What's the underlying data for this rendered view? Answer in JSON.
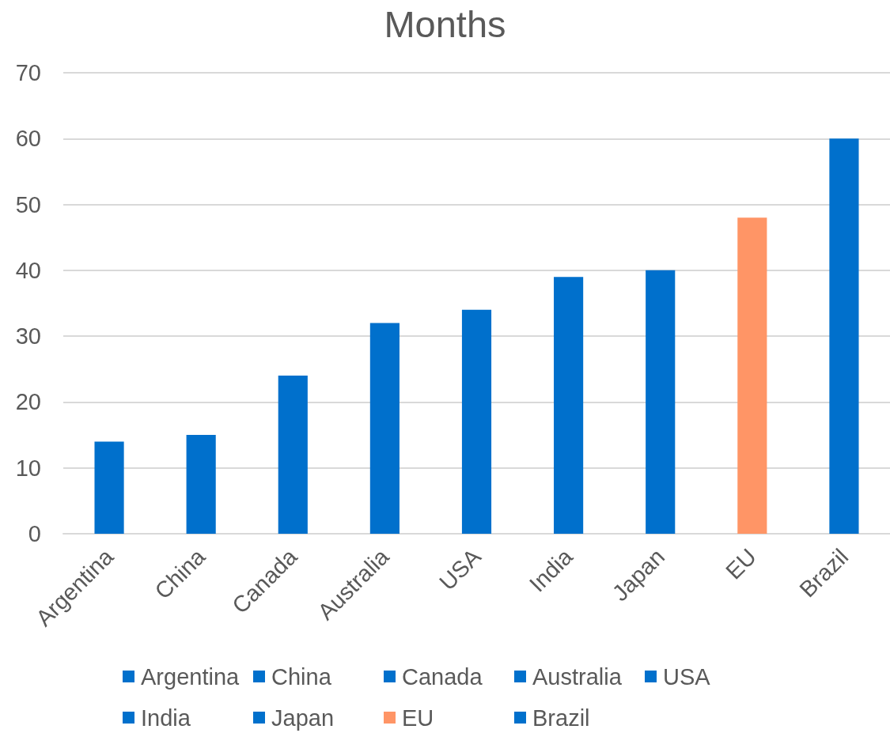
{
  "chart_data": {
    "type": "bar",
    "title": "Months",
    "stacked": true,
    "categories": [
      "Argentina",
      "China",
      "Canada",
      "Australia",
      "USA",
      "India",
      "Japan",
      "EU",
      "Brazil"
    ],
    "series": [
      {
        "name": "Argentina",
        "color": "#0070cc",
        "values": [
          14,
          null,
          null,
          null,
          null,
          null,
          null,
          null,
          null
        ]
      },
      {
        "name": "China",
        "color": "#0070cc",
        "values": [
          null,
          15,
          null,
          null,
          null,
          null,
          null,
          null,
          null
        ]
      },
      {
        "name": "Canada",
        "color": "#0070cc",
        "values": [
          null,
          null,
          24,
          null,
          null,
          null,
          null,
          null,
          null
        ]
      },
      {
        "name": "Australia",
        "color": "#0070cc",
        "values": [
          null,
          null,
          null,
          32,
          null,
          null,
          null,
          null,
          null
        ]
      },
      {
        "name": "USA",
        "color": "#0070cc",
        "values": [
          null,
          null,
          null,
          null,
          34,
          null,
          null,
          null,
          null
        ]
      },
      {
        "name": "India",
        "color": "#0070cc",
        "values": [
          null,
          null,
          null,
          null,
          null,
          39,
          null,
          null,
          null
        ]
      },
      {
        "name": "Japan",
        "color": "#0070cc",
        "values": [
          null,
          null,
          null,
          null,
          null,
          null,
          40,
          null,
          null
        ]
      },
      {
        "name": "EU",
        "color": "#ff9566",
        "values": [
          null,
          null,
          null,
          null,
          null,
          null,
          null,
          48,
          null
        ]
      },
      {
        "name": "Brazil",
        "color": "#0070cc",
        "values": [
          null,
          null,
          null,
          null,
          null,
          null,
          null,
          null,
          60
        ]
      }
    ],
    "ylim": [
      0,
      70
    ],
    "yticks": [
      0,
      10,
      20,
      30,
      40,
      50,
      60,
      70
    ],
    "grid": "y",
    "legend": "bottom"
  }
}
